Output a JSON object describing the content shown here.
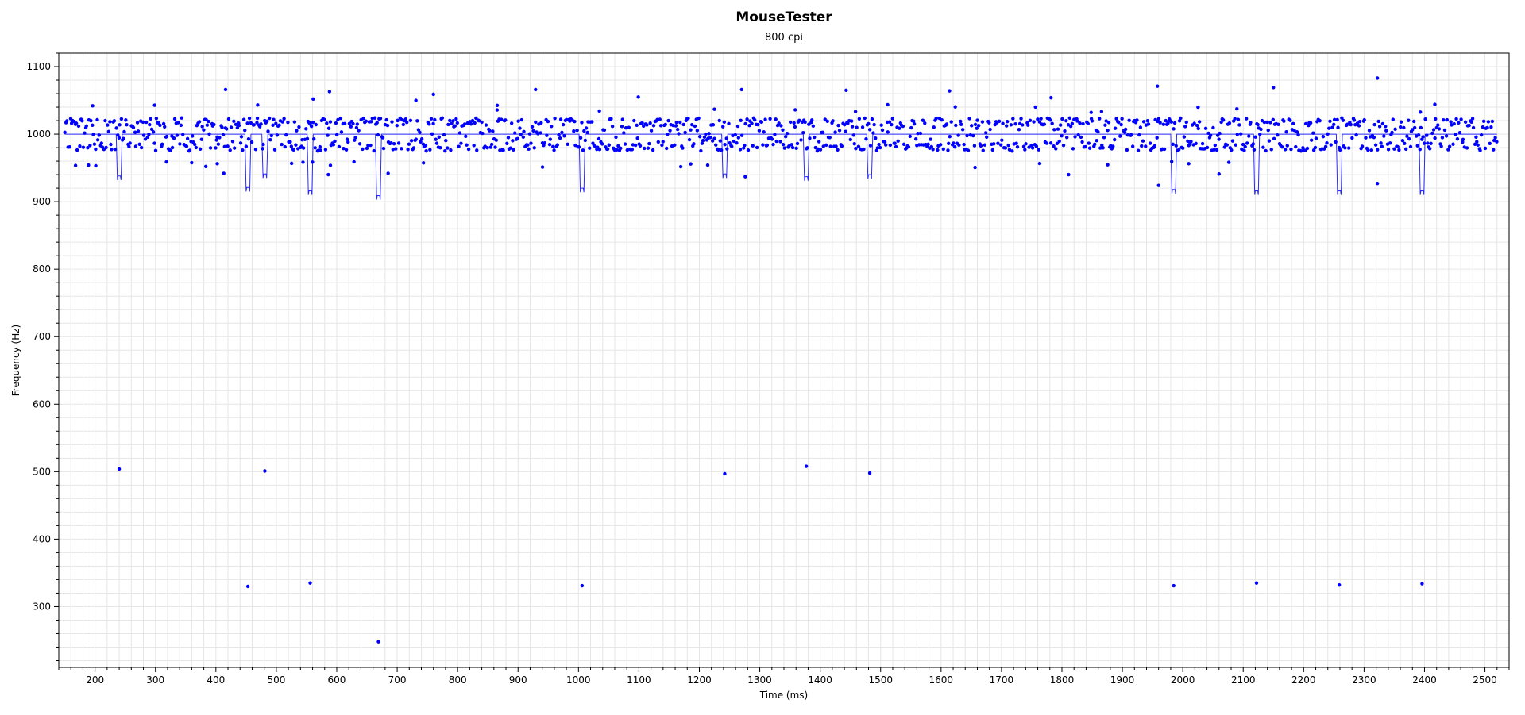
{
  "window": {
    "title": "MouseTester"
  },
  "chart_data": {
    "type": "scatter",
    "title": "MouseTester",
    "subtitle": "800 cpi",
    "xlabel": "Time (ms)",
    "ylabel": "Frequency (Hz)",
    "xlim": [
      140,
      2540
    ],
    "ylim": [
      210,
      1120
    ],
    "x_ticks": [
      200,
      300,
      400,
      500,
      600,
      700,
      800,
      900,
      1000,
      1100,
      1200,
      1300,
      1400,
      1500,
      1600,
      1700,
      1800,
      1900,
      2000,
      2100,
      2200,
      2300,
      2400,
      2500
    ],
    "y_ticks": [
      300,
      400,
      500,
      600,
      700,
      800,
      900,
      1000,
      1100
    ],
    "grid": true,
    "legend": "none",
    "colors": {
      "points": "#0000ff",
      "line": "#2a2aff",
      "grid": "#e6e6e6",
      "axis": "#000000"
    },
    "series": [
      {
        "kind": "points",
        "note_values": "sampled polling-rate points (Hz)",
        "x_start": 150,
        "x_end": 2520,
        "main_band": [
          950,
          1050
        ],
        "outliers": [
          {
            "x": 240,
            "y": 504
          },
          {
            "x": 453,
            "y": 330
          },
          {
            "x": 481,
            "y": 501
          },
          {
            "x": 556,
            "y": 335
          },
          {
            "x": 669,
            "y": 248
          },
          {
            "x": 1006,
            "y": 331
          },
          {
            "x": 1242,
            "y": 497
          },
          {
            "x": 1377,
            "y": 508
          },
          {
            "x": 1482,
            "y": 498
          },
          {
            "x": 1985,
            "y": 331
          },
          {
            "x": 2122,
            "y": 335
          },
          {
            "x": 2259,
            "y": 332
          },
          {
            "x": 2396,
            "y": 334
          }
        ],
        "high_points": [
          {
            "x": 196,
            "y": 1042
          },
          {
            "x": 416,
            "y": 1066
          },
          {
            "x": 561,
            "y": 1052
          },
          {
            "x": 588,
            "y": 1063
          },
          {
            "x": 731,
            "y": 1050
          },
          {
            "x": 760,
            "y": 1059
          },
          {
            "x": 929,
            "y": 1066
          },
          {
            "x": 1099,
            "y": 1055
          },
          {
            "x": 1270,
            "y": 1066
          },
          {
            "x": 1443,
            "y": 1065
          },
          {
            "x": 1614,
            "y": 1064
          },
          {
            "x": 1782,
            "y": 1054
          },
          {
            "x": 1958,
            "y": 1071
          },
          {
            "x": 2150,
            "y": 1069
          },
          {
            "x": 2322,
            "y": 1083
          }
        ],
        "low_points": [
          {
            "x": 413,
            "y": 942
          },
          {
            "x": 586,
            "y": 940
          },
          {
            "x": 685,
            "y": 942
          },
          {
            "x": 1276,
            "y": 937
          },
          {
            "x": 1811,
            "y": 940
          },
          {
            "x": 1960,
            "y": 924
          },
          {
            "x": 2060,
            "y": 941
          },
          {
            "x": 2322,
            "y": 927
          }
        ]
      },
      {
        "kind": "line",
        "baseline": 1000,
        "dips": [
          {
            "x": 240,
            "y": 932
          },
          {
            "x": 453,
            "y": 915
          },
          {
            "x": 481,
            "y": 935
          },
          {
            "x": 556,
            "y": 910
          },
          {
            "x": 669,
            "y": 903
          },
          {
            "x": 1006,
            "y": 914
          },
          {
            "x": 1242,
            "y": 935
          },
          {
            "x": 1377,
            "y": 931
          },
          {
            "x": 1482,
            "y": 934
          },
          {
            "x": 1985,
            "y": 912
          },
          {
            "x": 2122,
            "y": 910
          },
          {
            "x": 2259,
            "y": 910
          },
          {
            "x": 2396,
            "y": 910
          }
        ]
      }
    ]
  }
}
